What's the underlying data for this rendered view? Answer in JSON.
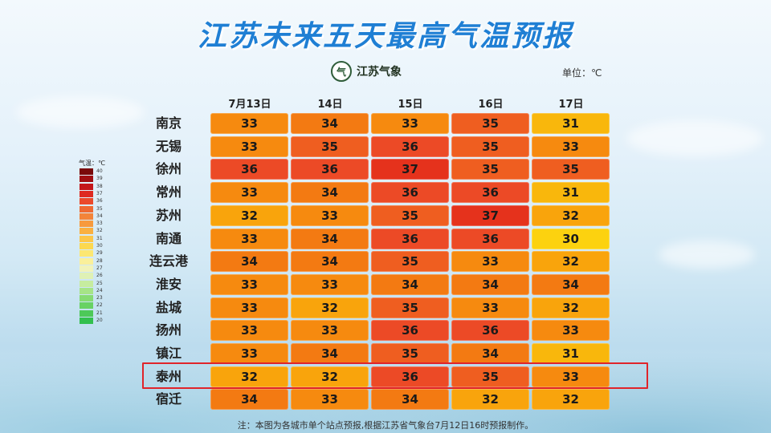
{
  "header": {
    "title": "江苏未来五天最高气温预报",
    "logo_text": "江苏气象",
    "logo_seal": "气",
    "unit": "单位：℃"
  },
  "footer": {
    "note": "注：本图为各城市单个站点预报,根据江苏省气象台7月12日16时预报制作。"
  },
  "legend": {
    "title": "气温：℃",
    "levels": [
      {
        "value": "40",
        "color": "#7a0a0a"
      },
      {
        "value": "39",
        "color": "#a00f12"
      },
      {
        "value": "38",
        "color": "#c4161a"
      },
      {
        "value": "37",
        "color": "#de2a22"
      },
      {
        "value": "36",
        "color": "#eb4a2c"
      },
      {
        "value": "35",
        "color": "#ef6a33"
      },
      {
        "value": "34",
        "color": "#f3843a"
      },
      {
        "value": "33",
        "color": "#f79a3d"
      },
      {
        "value": "32",
        "color": "#fab040"
      },
      {
        "value": "31",
        "color": "#fcc648"
      },
      {
        "value": "30",
        "color": "#fcd84f"
      },
      {
        "value": "29",
        "color": "#fce772"
      },
      {
        "value": "28",
        "color": "#faf09b"
      },
      {
        "value": "27",
        "color": "#f1f3b9"
      },
      {
        "value": "26",
        "color": "#dff1b5"
      },
      {
        "value": "25",
        "color": "#c6ec9f"
      },
      {
        "value": "24",
        "color": "#a6e487"
      },
      {
        "value": "23",
        "color": "#86db72"
      },
      {
        "value": "22",
        "color": "#68d263"
      },
      {
        "value": "21",
        "color": "#4dc958"
      },
      {
        "value": "20",
        "color": "#33c04e"
      }
    ]
  },
  "chart_data": {
    "type": "table",
    "title": "江苏未来五天最高气温预报",
    "unit": "℃",
    "columns": [
      "7月13日",
      "14日",
      "15日",
      "16日",
      "17日"
    ],
    "highlight_city": "泰州",
    "rows": [
      {
        "city": "南京",
        "values": [
          33,
          34,
          33,
          35,
          31
        ]
      },
      {
        "city": "无锡",
        "values": [
          33,
          35,
          36,
          35,
          33
        ]
      },
      {
        "city": "徐州",
        "values": [
          36,
          36,
          37,
          35,
          35
        ]
      },
      {
        "city": "常州",
        "values": [
          33,
          34,
          36,
          36,
          31
        ]
      },
      {
        "city": "苏州",
        "values": [
          32,
          33,
          35,
          37,
          32
        ]
      },
      {
        "city": "南通",
        "values": [
          33,
          34,
          36,
          36,
          30
        ]
      },
      {
        "city": "连云港",
        "values": [
          34,
          34,
          35,
          33,
          32
        ]
      },
      {
        "city": "淮安",
        "values": [
          33,
          33,
          34,
          34,
          34
        ]
      },
      {
        "city": "盐城",
        "values": [
          33,
          32,
          35,
          33,
          32
        ]
      },
      {
        "city": "扬州",
        "values": [
          33,
          33,
          36,
          36,
          33
        ]
      },
      {
        "city": "镇江",
        "values": [
          33,
          34,
          35,
          34,
          31
        ]
      },
      {
        "city": "泰州",
        "values": [
          32,
          32,
          36,
          35,
          33
        ]
      },
      {
        "city": "宿迁",
        "values": [
          34,
          33,
          34,
          32,
          32
        ]
      }
    ],
    "cell_colors": {
      "30": "#fcd20f",
      "31": "#f9b70c",
      "32": "#f9a40c",
      "33": "#f68a0f",
      "34": "#f37a12",
      "35": "#ef5e20",
      "36": "#ec4a26",
      "37": "#e5321c"
    }
  }
}
